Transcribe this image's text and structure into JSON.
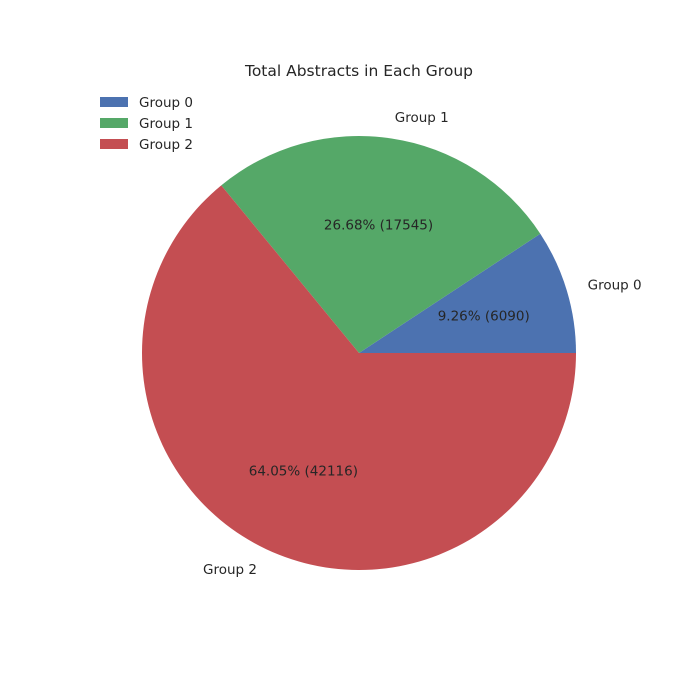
{
  "chart_data": {
    "type": "pie",
    "title": "Total Abstracts in Each Group",
    "start_angle_deg": 0,
    "direction": "counterclockwise",
    "legend_position": "top-left",
    "slices": [
      {
        "label": "Group 0",
        "value": 6090,
        "percent_label": "9.26%  (6090)",
        "color": "#4c72b0"
      },
      {
        "label": "Group 1",
        "value": 17545,
        "percent_label": "26.68%  (17545)",
        "color": "#55a868"
      },
      {
        "label": "Group 2",
        "value": 42116,
        "percent_label": "64.05%  (42116)",
        "color": "#c44e52"
      }
    ]
  }
}
